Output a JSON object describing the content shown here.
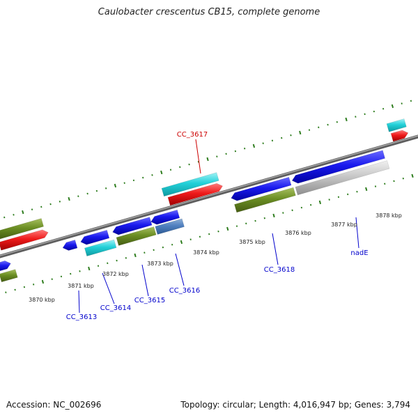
{
  "title": "Caulobacter crescentus CB15, complete genome",
  "footer": {
    "accession": "Accession: NC_002696",
    "summary": "Topology: circular; Length: 4,016,947 bp; Genes: 3,794"
  },
  "colors": {
    "backbone": "#8c8c8c",
    "tick": "#2e7d1e",
    "cds_forward": "#1a1aee",
    "cds_reverse": "#ee1a1a",
    "gene_cyan": "#22d0d8",
    "gene_olive": "#6b8e23",
    "gene_grey": "#c8c8c8",
    "label_blue": "#0000cc",
    "label_red": "#cc0000"
  },
  "kbp_labels": [
    "3870 kbp",
    "3871 kbp",
    "3872 kbp",
    "3873 kbp",
    "3874 kbp",
    "3875 kbp",
    "3876 kbp",
    "3877 kbp",
    "3878 kbp"
  ],
  "gene_labels": [
    {
      "text": "CC_3617",
      "color": "label_red"
    },
    {
      "text": "CC_3613",
      "color": "label_blue"
    },
    {
      "text": "CC_3614",
      "color": "label_blue"
    },
    {
      "text": "CC_3615",
      "color": "label_blue"
    },
    {
      "text": "CC_3616",
      "color": "label_blue"
    },
    {
      "text": "CC_3618",
      "color": "label_blue"
    },
    {
      "text": "nadE",
      "color": "label_blue"
    }
  ]
}
